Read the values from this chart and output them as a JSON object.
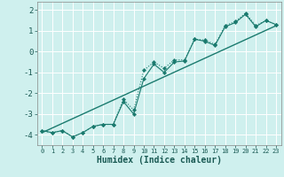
{
  "xlabel": "Humidex (Indice chaleur)",
  "bg_color": "#cff0ee",
  "grid_color": "#ffffff",
  "line_color": "#1a7a6e",
  "xlim": [
    -0.5,
    23.5
  ],
  "ylim": [
    -4.5,
    2.4
  ],
  "yticks": [
    -4,
    -3,
    -2,
    -1,
    0,
    1,
    2
  ],
  "xticks": [
    0,
    1,
    2,
    3,
    4,
    5,
    6,
    7,
    8,
    9,
    10,
    11,
    12,
    13,
    14,
    15,
    16,
    17,
    18,
    19,
    20,
    21,
    22,
    23
  ],
  "data_x": [
    0,
    1,
    2,
    3,
    4,
    5,
    6,
    7,
    8,
    9,
    10,
    11,
    12,
    13,
    14,
    15,
    16,
    17,
    18,
    19,
    20,
    21,
    22,
    23
  ],
  "data_y1": [
    -3.8,
    -3.9,
    -3.8,
    -4.1,
    -3.9,
    -3.6,
    -3.5,
    -3.5,
    -2.4,
    -3.0,
    -1.3,
    -0.6,
    -1.0,
    -0.5,
    -0.45,
    0.6,
    0.5,
    0.3,
    1.2,
    1.4,
    1.8,
    1.2,
    1.5,
    1.3
  ],
  "data_y2": [
    -3.8,
    -3.9,
    -3.8,
    -4.1,
    -3.9,
    -3.6,
    -3.5,
    -3.5,
    -2.3,
    -2.8,
    -0.9,
    -0.5,
    -0.8,
    -0.4,
    -0.4,
    0.6,
    0.55,
    0.35,
    1.25,
    1.45,
    1.85,
    1.25,
    1.5,
    1.3
  ],
  "trend_x": [
    0,
    23
  ],
  "trend_y": [
    -3.9,
    1.25
  ]
}
